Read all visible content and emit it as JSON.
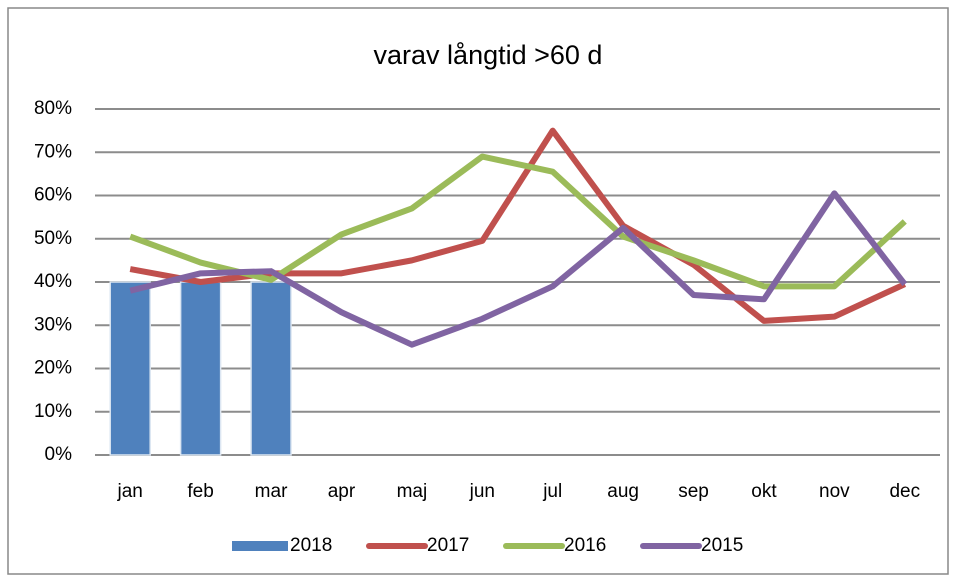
{
  "chart_data": {
    "type": "bar",
    "title": "varav långtid >60 d",
    "categories": [
      "jan",
      "feb",
      "mar",
      "apr",
      "maj",
      "jun",
      "jul",
      "aug",
      "sep",
      "okt",
      "nov",
      "dec"
    ],
    "series": [
      {
        "name": "2018",
        "type": "bar",
        "color": "#4f81bd",
        "values": [
          40,
          40,
          40,
          null,
          null,
          null,
          null,
          null,
          null,
          null,
          null,
          null
        ]
      },
      {
        "name": "2017",
        "type": "line",
        "color": "#c0504d",
        "values": [
          43,
          40,
          42,
          42,
          45,
          49.5,
          75,
          53,
          44,
          31,
          32,
          39.5
        ]
      },
      {
        "name": "2016",
        "type": "line",
        "color": "#9bbb59",
        "values": [
          50.5,
          44.5,
          40.5,
          51,
          57,
          69,
          65.5,
          50.5,
          45,
          39,
          39,
          54
        ]
      },
      {
        "name": "2015",
        "type": "line",
        "color": "#8064a2",
        "values": [
          38,
          42,
          42.5,
          33,
          25.5,
          31.5,
          39,
          52.5,
          37,
          36,
          60.5,
          39.5
        ]
      }
    ],
    "ylim": [
      0,
      80
    ],
    "yticks": [
      {
        "value": 0,
        "label": "0%"
      },
      {
        "value": 10,
        "label": "10%"
      },
      {
        "value": 20,
        "label": "20%"
      },
      {
        "value": 30,
        "label": "30%"
      },
      {
        "value": 40,
        "label": "40%"
      },
      {
        "value": 50,
        "label": "50%"
      },
      {
        "value": 60,
        "label": "60%"
      },
      {
        "value": 70,
        "label": "70%"
      },
      {
        "value": 80,
        "label": "80%"
      }
    ],
    "grid": true,
    "legend": "bottom"
  }
}
